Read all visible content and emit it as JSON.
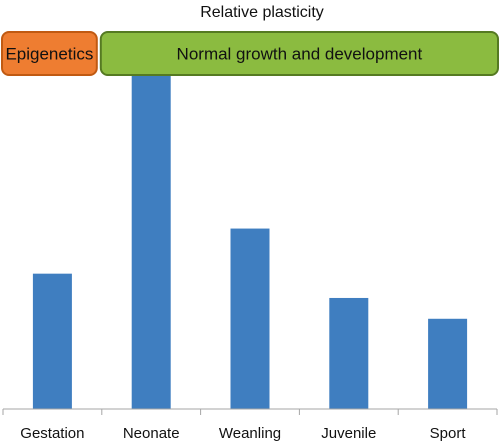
{
  "chart_data": {
    "type": "bar",
    "title": "Relative plasticity",
    "xlabel": "",
    "ylabel": "",
    "categories": [
      "Gestation",
      "Neonate",
      "Weanling",
      "Juvenile",
      "Sport"
    ],
    "values": [
      39,
      100,
      52,
      32,
      26
    ],
    "ylim": [
      0,
      100
    ],
    "grid": false,
    "y_axis_visible": false,
    "annotations": [
      {
        "text": "Epigenetics",
        "spans": [
          "Gestation"
        ],
        "fill": "#ee7d31",
        "border": "#c05a12",
        "shape": "rounded-banner"
      },
      {
        "text": "Normal growth and development",
        "spans": [
          "Neonate",
          "Weanling",
          "Juvenile",
          "Sport"
        ],
        "fill": "#8bbb40",
        "border": "#557a22",
        "shape": "rounded-banner"
      }
    ]
  },
  "colors": {
    "bar": "#3f7ec0",
    "axis": "#a6a6a6",
    "text": "#111111",
    "background": "#ffffff"
  }
}
